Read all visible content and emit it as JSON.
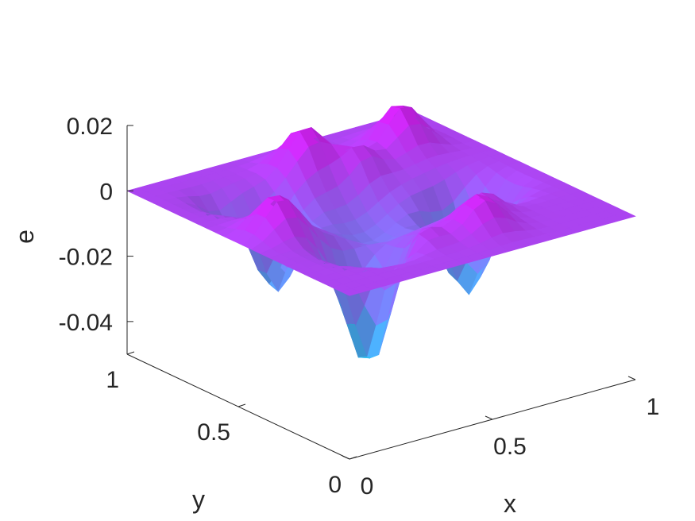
{
  "chart_data": {
    "type": "surface",
    "title": "",
    "xlabel": "x",
    "ylabel": "y",
    "zlabel": "e",
    "xlim": [
      0,
      1
    ],
    "ylim": [
      0,
      1
    ],
    "zlim": [
      -0.05,
      0.02
    ],
    "x_ticks": [
      {
        "value": 0,
        "label": "0"
      },
      {
        "value": 0.5,
        "label": "0.5"
      },
      {
        "value": 1,
        "label": "1"
      }
    ],
    "y_ticks": [
      {
        "value": 0,
        "label": "0"
      },
      {
        "value": 0.5,
        "label": "0.5"
      },
      {
        "value": 1,
        "label": "1"
      }
    ],
    "z_ticks": [
      {
        "value": 0.02,
        "label": "0.02"
      },
      {
        "value": 0,
        "label": "0"
      },
      {
        "value": -0.02,
        "label": "-0.02"
      },
      {
        "value": -0.04,
        "label": "-0.04"
      }
    ],
    "colormap": [
      "#00ffff",
      "#ff00ff"
    ],
    "grid": "off",
    "view": {
      "azimuth": -37.5,
      "elevation": 30
    },
    "surface": {
      "grid_size": 25,
      "description_of_shape": "zero on the boundary; oscillating bumps of roughly +/-0.02 with a few deep troughs down to about -0.05",
      "features": [
        {
          "x": 0.3,
          "y": 0.3,
          "amplitude": -0.045,
          "width": 0.07
        },
        {
          "x": 0.77,
          "y": 0.45,
          "amplitude": -0.037,
          "width": 0.07
        },
        {
          "x": 0.28,
          "y": 0.7,
          "amplitude": -0.032,
          "width": 0.06
        },
        {
          "x": 0.5,
          "y": 0.55,
          "amplitude": -0.014,
          "width": 0.12
        },
        {
          "x": 0.82,
          "y": 0.82,
          "amplitude": 0.02,
          "width": 0.06
        },
        {
          "x": 0.5,
          "y": 0.85,
          "amplitude": 0.017,
          "width": 0.06
        },
        {
          "x": 0.13,
          "y": 0.5,
          "amplitude": 0.016,
          "width": 0.06
        },
        {
          "x": 0.6,
          "y": 0.18,
          "amplitude": 0.013,
          "width": 0.06
        },
        {
          "x": 0.4,
          "y": 0.22,
          "amplitude": 0.01,
          "width": 0.05
        },
        {
          "x": 0.18,
          "y": 0.8,
          "amplitude": -0.012,
          "width": 0.05
        },
        {
          "x": 0.62,
          "y": 0.75,
          "amplitude": 0.009,
          "width": 0.05
        },
        {
          "x": 0.7,
          "y": 0.3,
          "amplitude": 0.008,
          "width": 0.05
        }
      ]
    }
  }
}
